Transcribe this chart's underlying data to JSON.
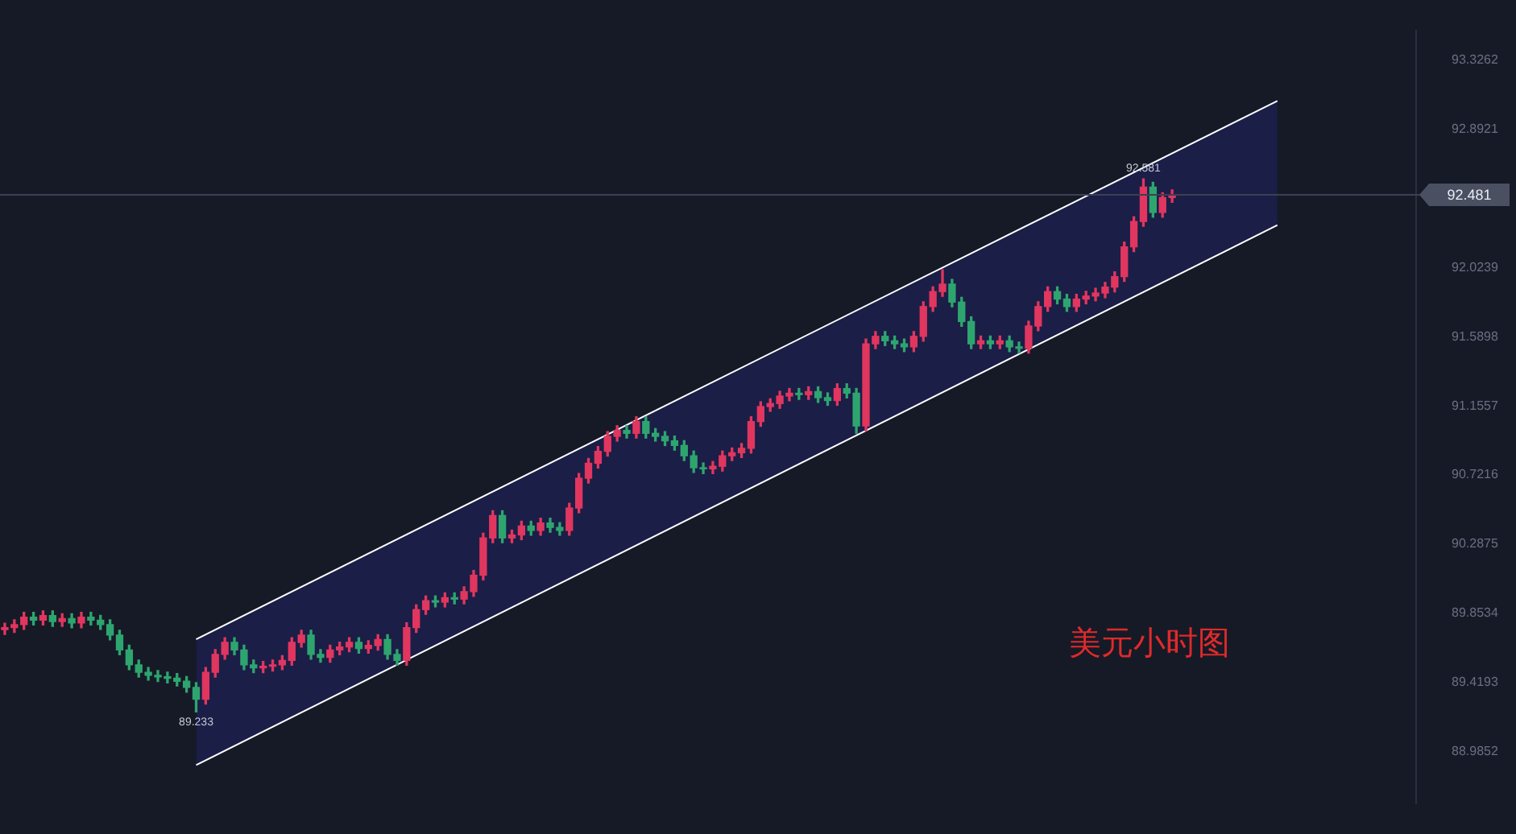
{
  "chart_data": {
    "type": "candlestick",
    "tick_labels": "y",
    "grid": false,
    "legend": false,
    "categories": [
      null,
      null,
      null,
      null,
      null,
      null,
      null,
      null,
      null,
      null,
      null,
      null,
      null,
      null,
      null,
      null,
      null,
      null,
      null,
      null,
      null,
      null,
      null,
      null,
      null,
      null,
      null,
      null,
      null,
      null,
      null,
      null,
      null,
      null,
      null,
      null,
      null,
      null,
      null,
      null,
      null,
      null,
      null,
      null,
      null,
      null,
      null,
      null,
      null,
      null,
      null,
      null,
      null,
      null,
      null,
      null,
      null,
      null,
      null,
      null,
      null,
      null,
      null,
      null,
      null,
      null,
      null,
      null,
      null,
      null,
      null,
      null,
      null,
      null,
      null,
      null,
      null,
      null,
      null,
      null,
      null,
      null,
      null,
      null,
      null,
      null,
      null,
      null,
      null,
      null,
      null,
      null,
      null,
      null,
      null,
      null,
      null,
      null,
      null,
      null,
      null,
      null,
      null,
      null,
      null,
      null,
      null,
      null,
      null,
      null,
      null,
      null,
      null,
      null,
      null,
      null,
      null,
      null,
      null,
      null,
      null,
      null,
      null,
      null,
      null,
      null,
      null,
      null,
      null,
      null,
      null,
      null,
      null,
      null,
      null,
      null,
      null,
      null,
      null,
      null,
      null,
      null,
      null,
      null,
      null,
      null,
      null,
      null
    ],
    "ylim": [
      88.657,
      93.514
    ],
    "yticks": [
      88.9852,
      89.4193,
      89.8534,
      90.2875,
      90.7216,
      91.1557,
      91.5898,
      92.0239,
      92.8921,
      93.3262
    ],
    "ref_lines": [
      {
        "axis": "y",
        "value": 92.481,
        "label": "92.481",
        "color": "#3b4052"
      }
    ],
    "annotations": [
      {
        "text": "89.233",
        "y": 89.233
      },
      {
        "text": "92.581",
        "y": 92.581
      },
      "美元小时图"
    ],
    "series": [
      {
        "type": "candlestick",
        "ohlc": [
          [
            89.75,
            89.79,
            89.72,
            89.763
          ],
          [
            89.763,
            89.812,
            89.733,
            89.782
          ],
          [
            89.782,
            89.859,
            89.752,
            89.829
          ],
          [
            89.829,
            89.859,
            89.78,
            89.81
          ],
          [
            89.81,
            89.868,
            89.78,
            89.838
          ],
          [
            89.838,
            89.868,
            89.771,
            89.801
          ],
          [
            89.801,
            89.85,
            89.771,
            89.82
          ],
          [
            89.82,
            89.85,
            89.762,
            89.792
          ],
          [
            89.792,
            89.859,
            89.762,
            89.829
          ],
          [
            89.829,
            89.859,
            89.78,
            89.81
          ],
          [
            89.81,
            89.84,
            89.752,
            89.782
          ],
          [
            89.782,
            89.812,
            89.686,
            89.716
          ],
          [
            89.716,
            89.746,
            89.593,
            89.623
          ],
          [
            89.623,
            89.653,
            89.499,
            89.529
          ],
          [
            89.529,
            89.559,
            89.452,
            89.482
          ],
          [
            89.482,
            89.512,
            89.433,
            89.463
          ],
          [
            89.463,
            89.493,
            89.424,
            89.454
          ],
          [
            89.454,
            89.484,
            89.415,
            89.445
          ],
          [
            89.445,
            89.475,
            89.396,
            89.426
          ],
          [
            89.426,
            89.456,
            89.358,
            89.388
          ],
          [
            89.388,
            89.418,
            89.233,
            89.313
          ],
          [
            89.313,
            89.512,
            89.283,
            89.482
          ],
          [
            89.482,
            89.625,
            89.452,
            89.595
          ],
          [
            89.595,
            89.7,
            89.565,
            89.67
          ],
          [
            89.67,
            89.7,
            89.593,
            89.623
          ],
          [
            89.623,
            89.653,
            89.499,
            89.529
          ],
          [
            89.529,
            89.559,
            89.48,
            89.51
          ],
          [
            89.51,
            89.55,
            89.48,
            89.52
          ],
          [
            89.52,
            89.559,
            89.49,
            89.529
          ],
          [
            89.529,
            89.587,
            89.499,
            89.557
          ],
          [
            89.557,
            89.7,
            89.527,
            89.67
          ],
          [
            89.67,
            89.746,
            89.64,
            89.716
          ],
          [
            89.716,
            89.746,
            89.565,
            89.595
          ],
          [
            89.595,
            89.625,
            89.546,
            89.576
          ],
          [
            89.576,
            89.653,
            89.546,
            89.623
          ],
          [
            89.623,
            89.672,
            89.593,
            89.642
          ],
          [
            89.642,
            89.7,
            89.612,
            89.67
          ],
          [
            89.67,
            89.7,
            89.602,
            89.632
          ],
          [
            89.632,
            89.681,
            89.602,
            89.651
          ],
          [
            89.651,
            89.718,
            89.621,
            89.688
          ],
          [
            89.688,
            89.718,
            89.565,
            89.595
          ],
          [
            89.595,
            89.625,
            89.527,
            89.557
          ],
          [
            89.557,
            89.793,
            89.527,
            89.763
          ],
          [
            89.763,
            89.906,
            89.733,
            89.876
          ],
          [
            89.876,
            89.962,
            89.846,
            89.932
          ],
          [
            89.932,
            89.962,
            89.893,
            89.923
          ],
          [
            89.923,
            89.981,
            89.893,
            89.951
          ],
          [
            89.951,
            89.981,
            89.912,
            89.942
          ],
          [
            89.942,
            90.019,
            89.912,
            89.989
          ],
          [
            89.989,
            90.122,
            89.959,
            90.092
          ],
          [
            90.092,
            90.356,
            90.062,
            90.326
          ],
          [
            90.326,
            90.497,
            90.296,
            90.467
          ],
          [
            90.467,
            90.497,
            90.296,
            90.326
          ],
          [
            90.326,
            90.375,
            90.296,
            90.345
          ],
          [
            90.345,
            90.431,
            90.315,
            90.401
          ],
          [
            90.401,
            90.431,
            90.343,
            90.373
          ],
          [
            90.373,
            90.45,
            90.343,
            90.42
          ],
          [
            90.42,
            90.45,
            90.362,
            90.392
          ],
          [
            90.392,
            90.422,
            90.343,
            90.373
          ],
          [
            90.373,
            90.544,
            90.343,
            90.514
          ],
          [
            90.514,
            90.731,
            90.484,
            90.701
          ],
          [
            90.701,
            90.825,
            90.671,
            90.795
          ],
          [
            90.795,
            90.9,
            90.765,
            90.87
          ],
          [
            90.87,
            90.994,
            90.84,
            90.964
          ],
          [
            90.964,
            91.031,
            90.934,
            91.001
          ],
          [
            91.001,
            91.031,
            90.953,
            90.983
          ],
          [
            90.983,
            91.087,
            90.953,
            91.057
          ],
          [
            91.057,
            91.087,
            90.953,
            90.983
          ],
          [
            90.983,
            91.013,
            90.934,
            90.964
          ],
          [
            90.964,
            90.994,
            90.906,
            90.936
          ],
          [
            90.936,
            90.966,
            90.877,
            90.907
          ],
          [
            90.907,
            90.937,
            90.812,
            90.842
          ],
          [
            90.842,
            90.872,
            90.737,
            90.767
          ],
          [
            90.767,
            90.797,
            90.73,
            90.76
          ],
          [
            90.76,
            90.806,
            90.73,
            90.776
          ],
          [
            90.776,
            90.872,
            90.746,
            90.842
          ],
          [
            90.842,
            90.891,
            90.812,
            90.861
          ],
          [
            90.861,
            90.919,
            90.831,
            90.889
          ],
          [
            90.889,
            91.087,
            90.859,
            91.057
          ],
          [
            91.057,
            91.181,
            91.027,
            91.151
          ],
          [
            91.151,
            91.2,
            91.121,
            91.17
          ],
          [
            91.17,
            91.247,
            91.14,
            91.217
          ],
          [
            91.217,
            91.265,
            91.187,
            91.235
          ],
          [
            91.235,
            91.265,
            91.196,
            91.226
          ],
          [
            91.226,
            91.275,
            91.196,
            91.245
          ],
          [
            91.245,
            91.275,
            91.177,
            91.207
          ],
          [
            91.207,
            91.237,
            91.159,
            91.189
          ],
          [
            91.189,
            91.294,
            91.159,
            91.264
          ],
          [
            91.264,
            91.294,
            91.205,
            91.235
          ],
          [
            91.235,
            91.265,
            90.983,
            91.029
          ],
          [
            91.029,
            91.575,
            90.999,
            91.545
          ],
          [
            91.545,
            91.622,
            91.515,
            91.592
          ],
          [
            91.592,
            91.622,
            91.534,
            91.564
          ],
          [
            91.564,
            91.594,
            91.515,
            91.545
          ],
          [
            91.545,
            91.575,
            91.496,
            91.526
          ],
          [
            91.526,
            91.622,
            91.496,
            91.592
          ],
          [
            91.592,
            91.809,
            91.562,
            91.779
          ],
          [
            91.779,
            91.903,
            91.749,
            91.873
          ],
          [
            91.873,
            92.01,
            91.843,
            91.92
          ],
          [
            91.92,
            91.95,
            91.777,
            91.807
          ],
          [
            91.807,
            91.837,
            91.655,
            91.685
          ],
          [
            91.685,
            91.715,
            91.515,
            91.545
          ],
          [
            91.545,
            91.594,
            91.515,
            91.564
          ],
          [
            91.564,
            91.594,
            91.515,
            91.545
          ],
          [
            91.545,
            91.594,
            91.515,
            91.564
          ],
          [
            91.564,
            91.594,
            91.496,
            91.526
          ],
          [
            91.526,
            91.556,
            91.487,
            91.517
          ],
          [
            91.517,
            91.687,
            91.487,
            91.657
          ],
          [
            91.657,
            91.809,
            91.627,
            91.779
          ],
          [
            91.779,
            91.903,
            91.749,
            91.873
          ],
          [
            91.873,
            91.903,
            91.796,
            91.826
          ],
          [
            91.826,
            91.856,
            91.749,
            91.779
          ],
          [
            91.779,
            91.856,
            91.749,
            91.826
          ],
          [
            91.826,
            91.875,
            91.796,
            91.845
          ],
          [
            91.845,
            91.894,
            91.815,
            91.864
          ],
          [
            91.864,
            91.931,
            91.834,
            91.901
          ],
          [
            91.901,
            91.997,
            91.871,
            91.967
          ],
          [
            91.967,
            92.184,
            91.937,
            92.154
          ],
          [
            92.154,
            92.343,
            92.124,
            92.313
          ],
          [
            92.313,
            92.581,
            92.283,
            92.529
          ],
          [
            92.529,
            92.559,
            92.34,
            92.37
          ],
          [
            92.37,
            92.494,
            92.34,
            92.464
          ],
          [
            92.464,
            92.511,
            92.434,
            92.481
          ],
          null,
          null,
          null,
          null,
          null,
          null,
          null,
          null,
          null,
          null,
          null,
          null,
          null,
          null,
          null,
          null,
          null,
          null,
          null,
          null,
          null,
          null,
          null,
          null,
          null
        ],
        "colors": [
          "#e0365f",
          "#e0365f",
          "#e0365f",
          "#2ea56f",
          "#e0365f",
          "#2ea56f",
          "#e0365f",
          "#2ea56f",
          "#e0365f",
          "#2ea56f",
          "#2ea56f",
          "#2ea56f",
          "#2ea56f",
          "#2ea56f",
          "#2ea56f",
          "#2ea56f",
          "#2ea56f",
          "#2ea56f",
          "#2ea56f",
          "#2ea56f",
          "#2ea56f",
          "#e0365f",
          "#e0365f",
          "#e0365f",
          "#2ea56f",
          "#2ea56f",
          "#2ea56f",
          "#e0365f",
          "#e0365f",
          "#e0365f",
          "#e0365f",
          "#e0365f",
          "#2ea56f",
          "#2ea56f",
          "#e0365f",
          "#e0365f",
          "#e0365f",
          "#2ea56f",
          "#e0365f",
          "#e0365f",
          "#2ea56f",
          "#2ea56f",
          "#e0365f",
          "#e0365f",
          "#e0365f",
          "#2ea56f",
          "#e0365f",
          "#2ea56f",
          "#e0365f",
          "#e0365f",
          "#e0365f",
          "#e0365f",
          "#2ea56f",
          "#e0365f",
          "#e0365f",
          "#2ea56f",
          "#e0365f",
          "#2ea56f",
          "#2ea56f",
          "#e0365f",
          "#e0365f",
          "#e0365f",
          "#e0365f",
          "#e0365f",
          "#e0365f",
          "#2ea56f",
          "#e0365f",
          "#2ea56f",
          "#2ea56f",
          "#2ea56f",
          "#2ea56f",
          "#2ea56f",
          "#2ea56f",
          "#2ea56f",
          "#e0365f",
          "#e0365f",
          "#e0365f",
          "#e0365f",
          "#e0365f",
          "#e0365f",
          "#e0365f",
          "#e0365f",
          "#e0365f",
          "#2ea56f",
          "#e0365f",
          "#2ea56f",
          "#2ea56f",
          "#e0365f",
          "#2ea56f",
          "#2ea56f",
          "#e0365f",
          "#e0365f",
          "#2ea56f",
          "#2ea56f",
          "#2ea56f",
          "#e0365f",
          "#e0365f",
          "#e0365f",
          "#e0365f",
          "#2ea56f",
          "#2ea56f",
          "#2ea56f",
          "#e0365f",
          "#2ea56f",
          "#e0365f",
          "#2ea56f",
          "#2ea56f",
          "#e0365f",
          "#e0365f",
          "#e0365f",
          "#2ea56f",
          "#2ea56f",
          "#e0365f",
          "#e0365f",
          "#e0365f",
          "#e0365f",
          "#e0365f",
          "#e0365f",
          "#e0365f",
          "#e0365f",
          "#2ea56f",
          "#e0365f",
          "#e0365f",
          null,
          null,
          null,
          null,
          null,
          null,
          null,
          null,
          null,
          null,
          null,
          null,
          null,
          null,
          null,
          null,
          null,
          null,
          null,
          null,
          null,
          null,
          null,
          null,
          null
        ]
      },
      {
        "type": "line",
        "color": "#ffffff",
        "lower": [
          null,
          null,
          null,
          null,
          null,
          null,
          null,
          null,
          null,
          null,
          null,
          null,
          null,
          null,
          null,
          null,
          null,
          null,
          null,
          null,
          88.9,
          null,
          null,
          null,
          null,
          null,
          null,
          null,
          null,
          null,
          null,
          null,
          null,
          null,
          null,
          null,
          null,
          null,
          null,
          null,
          null,
          null,
          null,
          null,
          null,
          null,
          null,
          null,
          null,
          null,
          null,
          null,
          null,
          null,
          null,
          null,
          null,
          null,
          null,
          null,
          null,
          null,
          null,
          null,
          null,
          null,
          null,
          null,
          null,
          null,
          null,
          null,
          null,
          null,
          null,
          null,
          null,
          null,
          null,
          null,
          null,
          null,
          null,
          null,
          null,
          null,
          null,
          null,
          null,
          null,
          null,
          null,
          null,
          null,
          null,
          null,
          null,
          null,
          null,
          null,
          null,
          null,
          null,
          null,
          null,
          null,
          null,
          null,
          null,
          null,
          null,
          null,
          null,
          null,
          null,
          null,
          null,
          null,
          null,
          null,
          null,
          null,
          null,
          null,
          null,
          null,
          null,
          null,
          null,
          null,
          null,
          null,
          null,
          92.29,
          null,
          null,
          null,
          null,
          null,
          null,
          null,
          null,
          null,
          null,
          null,
          null,
          null,
          null
        ],
        "upper": [
          null,
          null,
          null,
          null,
          null,
          null,
          null,
          null,
          null,
          null,
          null,
          null,
          null,
          null,
          null,
          null,
          null,
          null,
          null,
          null,
          89.69,
          null,
          null,
          null,
          null,
          null,
          null,
          null,
          null,
          null,
          null,
          null,
          null,
          null,
          null,
          null,
          null,
          null,
          null,
          null,
          null,
          null,
          null,
          null,
          null,
          null,
          null,
          null,
          null,
          null,
          null,
          null,
          null,
          null,
          null,
          null,
          null,
          null,
          null,
          null,
          null,
          null,
          null,
          null,
          null,
          null,
          null,
          null,
          null,
          null,
          null,
          null,
          null,
          null,
          null,
          null,
          null,
          null,
          null,
          null,
          null,
          null,
          null,
          null,
          null,
          null,
          null,
          null,
          null,
          null,
          null,
          null,
          null,
          null,
          null,
          null,
          null,
          null,
          null,
          null,
          null,
          null,
          null,
          null,
          null,
          null,
          null,
          null,
          null,
          null,
          null,
          null,
          null,
          null,
          null,
          null,
          null,
          null,
          null,
          null,
          null,
          null,
          null,
          null,
          null,
          null,
          null,
          null,
          null,
          null,
          null,
          null,
          null,
          93.07,
          null,
          null,
          null,
          null,
          null,
          null,
          null,
          null,
          null,
          null,
          null,
          null,
          null,
          null
        ],
        "values": [
          null,
          null,
          null,
          null,
          null,
          null,
          null,
          null,
          null,
          null,
          null,
          null,
          null,
          null,
          null,
          null,
          null,
          null,
          null,
          null,
          89.69,
          null,
          null,
          null,
          null,
          null,
          null,
          null,
          null,
          null,
          null,
          null,
          null,
          null,
          null,
          null,
          null,
          null,
          null,
          null,
          null,
          null,
          null,
          null,
          null,
          null,
          null,
          null,
          null,
          null,
          null,
          null,
          null,
          null,
          null,
          null,
          null,
          null,
          null,
          null,
          null,
          null,
          null,
          null,
          null,
          null,
          null,
          null,
          null,
          null,
          null,
          null,
          null,
          null,
          null,
          null,
          null,
          null,
          null,
          null,
          null,
          null,
          null,
          null,
          null,
          null,
          null,
          null,
          null,
          null,
          null,
          null,
          null,
          null,
          null,
          null,
          null,
          null,
          null,
          null,
          null,
          null,
          null,
          null,
          null,
          null,
          null,
          null,
          null,
          null,
          null,
          null,
          null,
          null,
          null,
          null,
          null,
          null,
          null,
          null,
          null,
          null,
          null,
          null,
          null,
          null,
          null,
          null,
          null,
          null,
          null,
          null,
          null,
          93.07,
          null,
          null,
          null,
          null,
          null,
          null,
          null,
          null,
          null,
          null,
          null,
          null,
          null,
          null
        ]
      },
      {
        "type": "line",
        "color": "#ffffff",
        "values": [
          null,
          null,
          null,
          null,
          null,
          null,
          null,
          null,
          null,
          null,
          null,
          null,
          null,
          null,
          null,
          null,
          null,
          null,
          null,
          null,
          88.9,
          null,
          null,
          null,
          null,
          null,
          null,
          null,
          null,
          null,
          null,
          null,
          null,
          null,
          null,
          null,
          null,
          null,
          null,
          null,
          null,
          null,
          null,
          null,
          null,
          null,
          null,
          null,
          null,
          null,
          null,
          null,
          null,
          null,
          null,
          null,
          null,
          null,
          null,
          null,
          null,
          null,
          null,
          null,
          null,
          null,
          null,
          null,
          null,
          null,
          null,
          null,
          null,
          null,
          null,
          null,
          null,
          null,
          null,
          null,
          null,
          null,
          null,
          null,
          null,
          null,
          null,
          null,
          null,
          null,
          null,
          null,
          null,
          null,
          null,
          null,
          null,
          null,
          null,
          null,
          null,
          null,
          null,
          null,
          null,
          null,
          null,
          null,
          null,
          null,
          null,
          null,
          null,
          null,
          null,
          null,
          null,
          null,
          null,
          null,
          null,
          null,
          null,
          null,
          null,
          null,
          null,
          null,
          null,
          null,
          null,
          null,
          null,
          92.29,
          null,
          null,
          null,
          null,
          null,
          null,
          null,
          null,
          null,
          null,
          null,
          null,
          null,
          null
        ]
      }
    ]
  }
}
